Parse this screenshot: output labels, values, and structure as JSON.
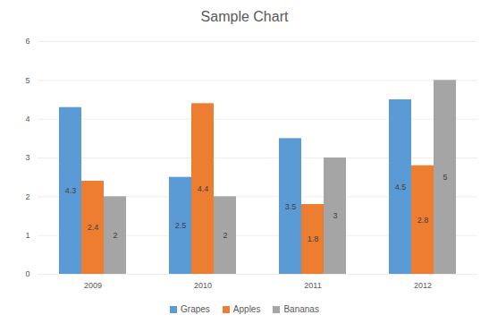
{
  "chart_data": {
    "type": "bar",
    "title": "Sample Chart",
    "categories": [
      "2009",
      "2010",
      "2011",
      "2012"
    ],
    "series": [
      {
        "name": "Grapes",
        "color": "#5b9bd5",
        "values": [
          4.3,
          2.5,
          3.5,
          4.5
        ]
      },
      {
        "name": "Apples",
        "color": "#ed7d31",
        "values": [
          2.4,
          4.4,
          1.8,
          2.8
        ]
      },
      {
        "name": "Bananas",
        "color": "#a5a5a5",
        "values": [
          2,
          2,
          3,
          5
        ]
      }
    ],
    "ylim": [
      0,
      6
    ],
    "yticks": [
      0,
      1,
      2,
      3,
      4,
      5,
      6
    ],
    "grid": true,
    "legend": "bottom",
    "data_labels": true
  }
}
